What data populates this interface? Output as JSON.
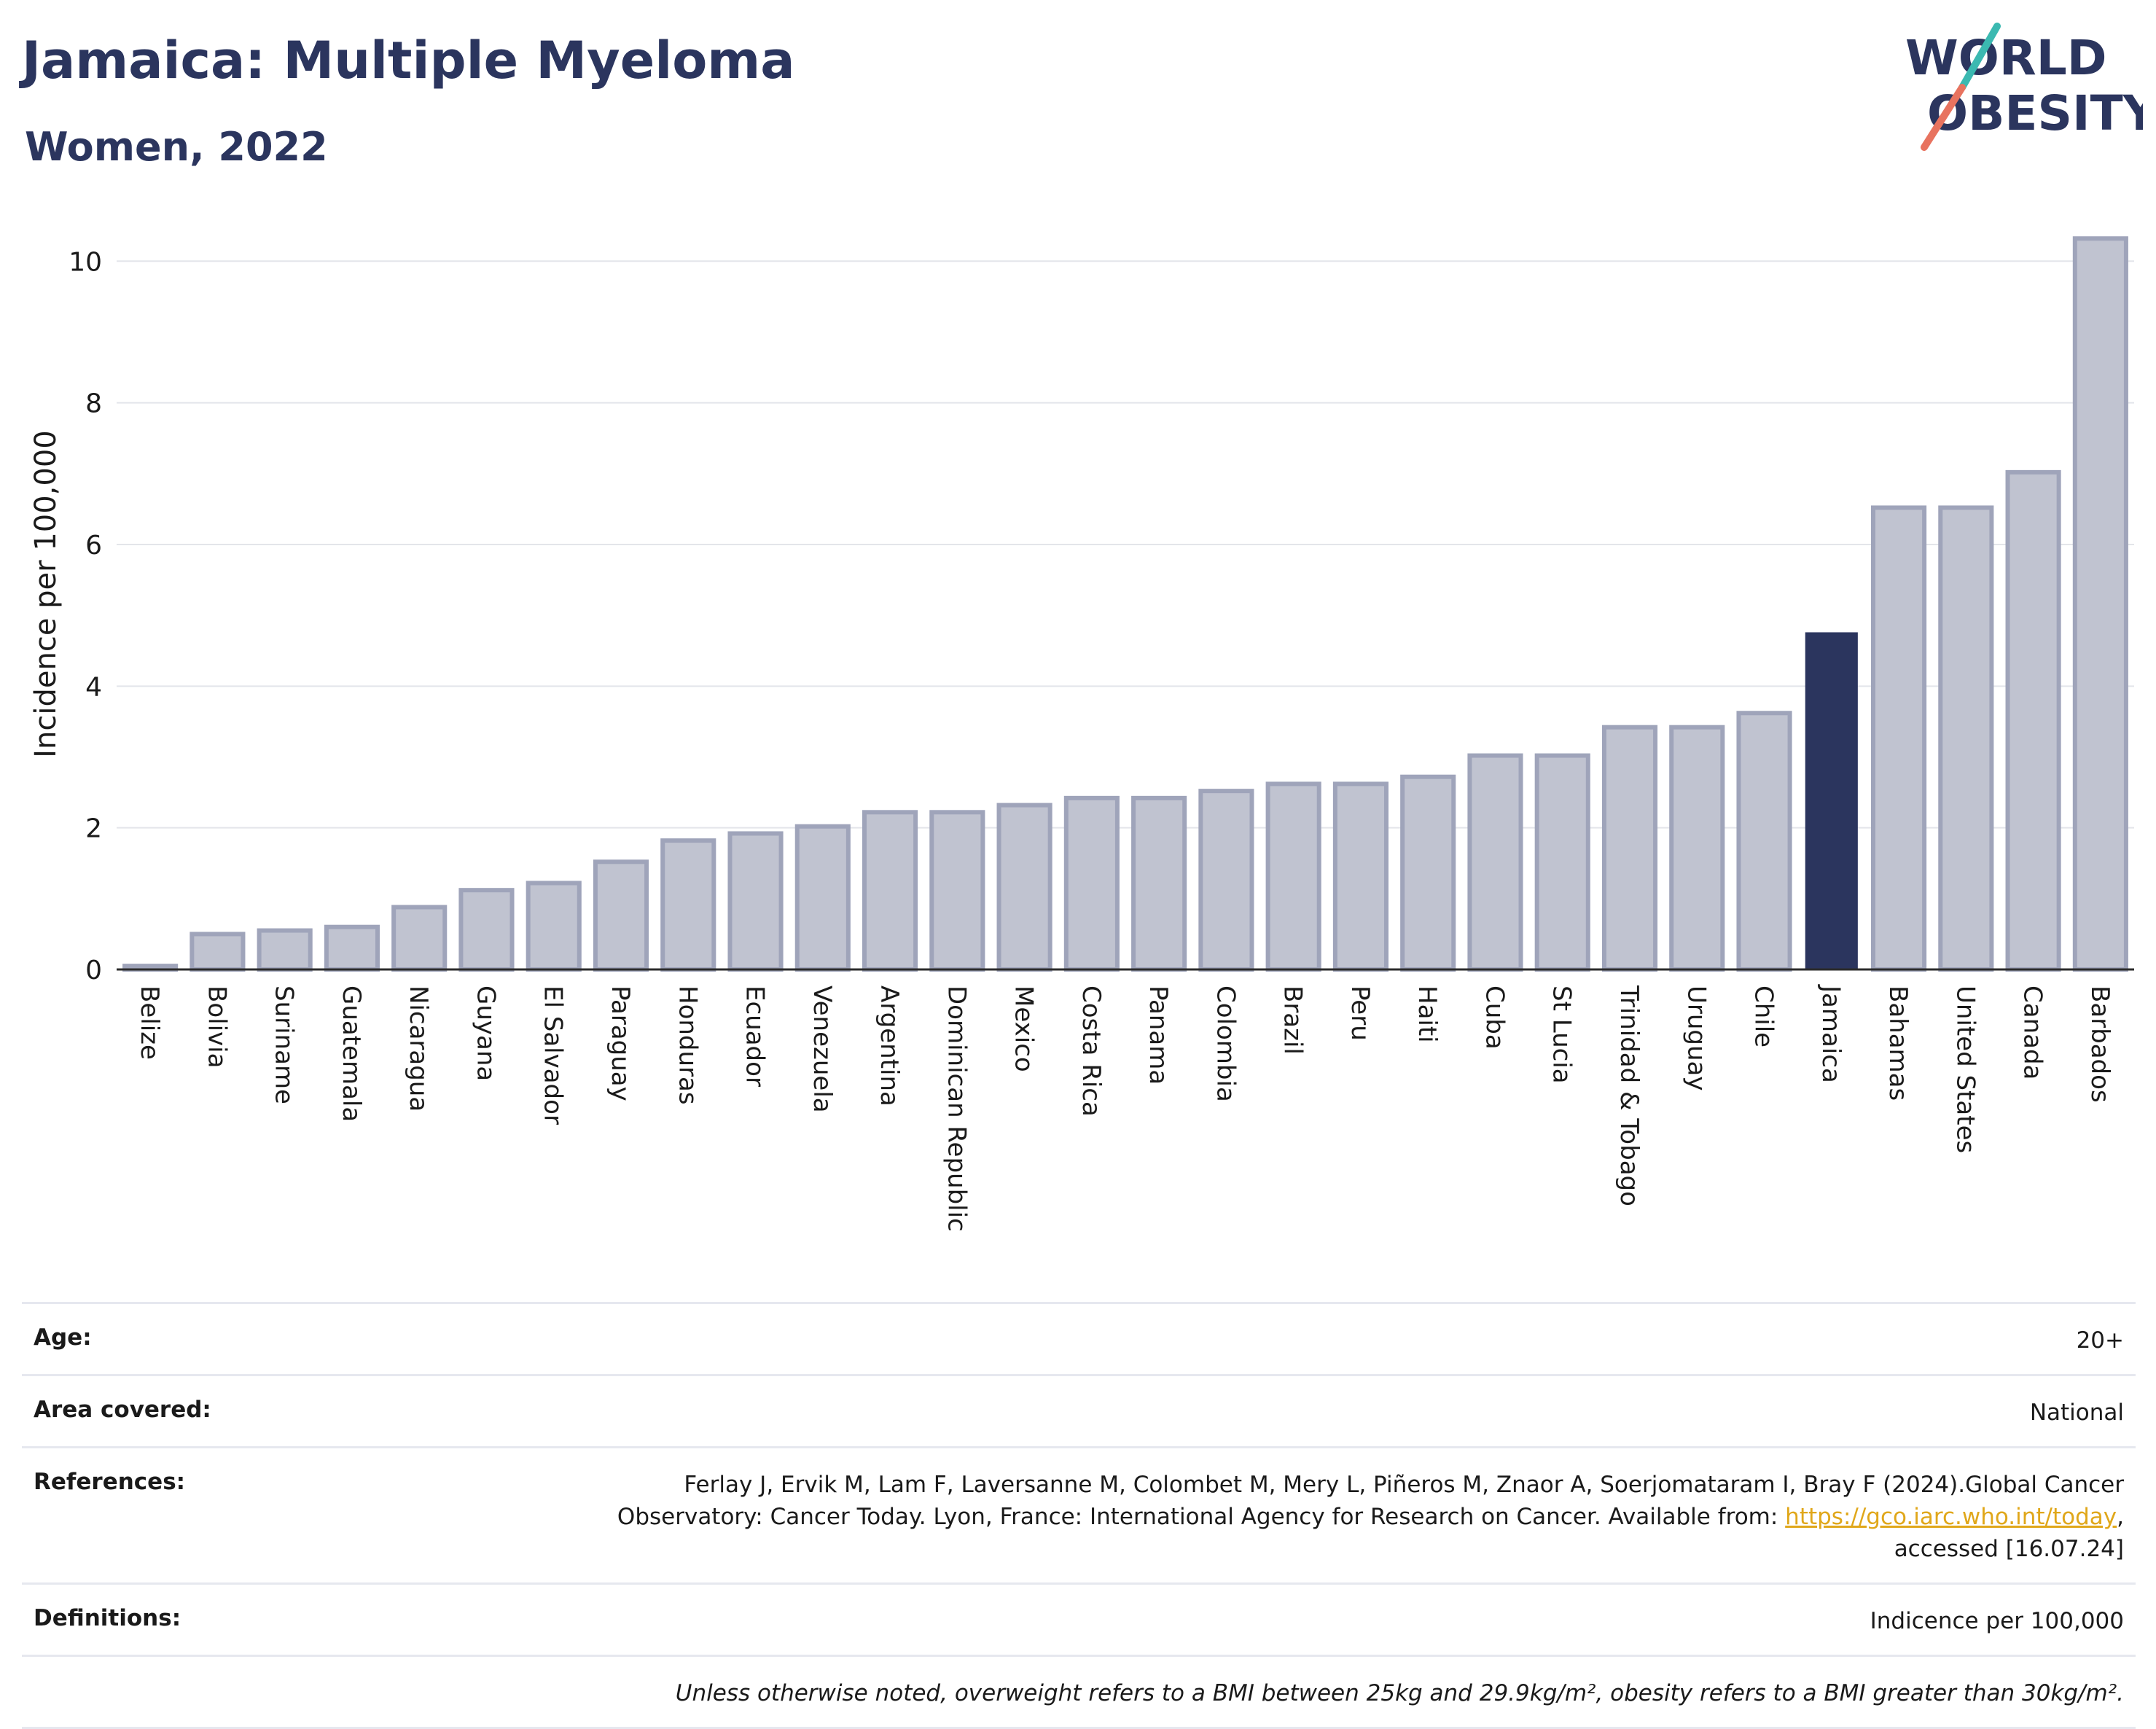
{
  "header": {
    "title": "Jamaica: Multiple Myeloma",
    "subtitle": "Women, 2022"
  },
  "logo": {
    "line1": "WORLD",
    "line2": "OBESITY"
  },
  "colors": {
    "highlight": "#2b355e",
    "bar": "#c0c3d0",
    "bar_edge": "#9fa4ba",
    "title": "#2b355e",
    "link": "#e0a71a"
  },
  "chart_data": {
    "type": "bar",
    "ylabel": "Incidence per 100,000",
    "xlabel": "",
    "ylim": [
      0,
      10.6
    ],
    "yticks": [
      0,
      2,
      4,
      6,
      8,
      10
    ],
    "grid": true,
    "highlight": "Jamaica",
    "categories": [
      "Belize",
      "Bolivia",
      "Suriname",
      "Guatemala",
      "Nicaragua",
      "Guyana",
      "El Salvador",
      "Paraguay",
      "Honduras",
      "Ecuador",
      "Venezuela",
      "Argentina",
      "Dominican Republic",
      "Mexico",
      "Costa Rica",
      "Panama",
      "Colombia",
      "Brazil",
      "Peru",
      "Haiti",
      "Cuba",
      "St Lucia",
      "Trinidad & Tobago",
      "Uruguay",
      "Chile",
      "Jamaica",
      "Bahamas",
      "United States",
      "Canada",
      "Barbados"
    ],
    "values": [
      0.05,
      0.5,
      0.55,
      0.6,
      0.88,
      1.12,
      1.22,
      1.52,
      1.82,
      1.92,
      2.02,
      2.22,
      2.22,
      2.32,
      2.42,
      2.42,
      2.52,
      2.62,
      2.62,
      2.72,
      3.02,
      3.02,
      3.42,
      3.42,
      3.62,
      4.75,
      6.52,
      6.52,
      7.02,
      10.32
    ]
  },
  "info": {
    "age_label": "Age:",
    "age_value": "20+",
    "area_label": "Area covered:",
    "area_value": "National",
    "references_label": "References:",
    "references_line1": "Ferlay J, Ervik M, Lam F, Laversanne M, Colombet M, Mery L, Piñeros M, Znaor A, Soerjomataram I, Bray F (2024).Global Cancer",
    "references_line2_pre": "Observatory: Cancer Today. Lyon, France: International Agency for Research on Cancer. Available from: ",
    "references_link": "https://gco.iarc.who.int/today",
    "references_line2_post": ",",
    "references_line3": "accessed [16.07.24]",
    "definitions_label": "Definitions:",
    "definitions_value": "Indicence per 100,000",
    "note": "Unless otherwise noted, overweight refers to a BMI between 25kg and 29.9kg/m², obesity refers to a BMI greater than 30kg/m²."
  }
}
